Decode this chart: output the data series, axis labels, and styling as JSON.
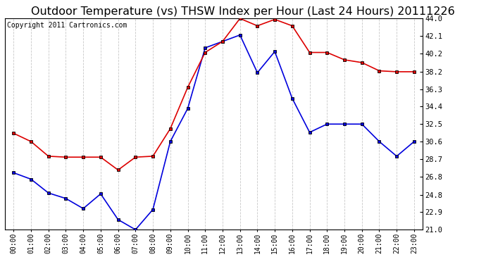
{
  "title": "Outdoor Temperature (vs) THSW Index per Hour (Last 24 Hours) 20111226",
  "copyright": "Copyright 2011 Cartronics.com",
  "x_labels": [
    "00:00",
    "01:00",
    "02:00",
    "03:00",
    "04:00",
    "05:00",
    "06:00",
    "07:00",
    "08:00",
    "09:00",
    "10:00",
    "11:00",
    "12:00",
    "13:00",
    "14:00",
    "15:00",
    "16:00",
    "17:00",
    "18:00",
    "19:00",
    "20:00",
    "21:00",
    "22:00",
    "23:00"
  ],
  "temp_blue": [
    27.2,
    26.5,
    25.0,
    24.4,
    23.3,
    24.9,
    22.1,
    21.0,
    23.2,
    30.6,
    34.2,
    40.8,
    41.5,
    42.2,
    38.1,
    40.4,
    35.3,
    31.6,
    32.5,
    32.5,
    32.5,
    30.6,
    29.0,
    30.6
  ],
  "thsw_red": [
    31.5,
    30.6,
    29.0,
    28.9,
    28.9,
    28.9,
    27.5,
    28.9,
    29.0,
    32.0,
    36.5,
    40.3,
    41.5,
    44.0,
    43.2,
    43.9,
    43.2,
    40.3,
    40.3,
    39.5,
    39.2,
    38.3,
    38.2,
    38.2
  ],
  "ylim_min": 21.0,
  "ylim_max": 44.0,
  "yticks": [
    21.0,
    22.9,
    24.8,
    26.8,
    28.7,
    30.6,
    32.5,
    34.4,
    36.3,
    38.2,
    40.2,
    42.1,
    44.0
  ],
  "bg_color": "#ffffff",
  "grid_color": "#c8c8c8",
  "line_blue": "#0000dd",
  "line_red": "#dd0000",
  "marker_size": 3.5,
  "title_fontsize": 11.5,
  "copyright_fontsize": 7,
  "tick_fontsize": 7.5,
  "xtick_fontsize": 7
}
